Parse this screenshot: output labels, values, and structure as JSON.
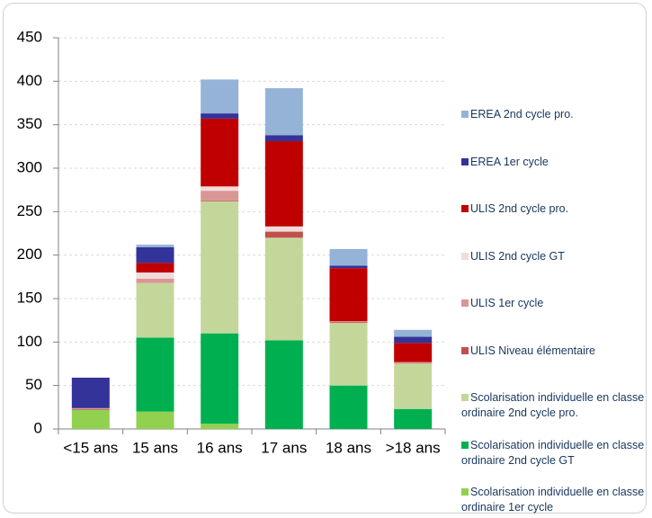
{
  "chart_data": {
    "type": "bar",
    "stacked": true,
    "categories": [
      "<15 ans",
      "15 ans",
      "16 ans",
      "17 ans",
      "18 ans",
      ">18 ans"
    ],
    "series": [
      {
        "name": "Scolarisation individuelle en classe ordinaire 1er cycle",
        "color": "#92d050",
        "values": [
          22,
          20,
          6,
          0,
          0,
          0
        ]
      },
      {
        "name": "Scolarisation individuelle en classe ordinaire 2nd cycle GT",
        "color": "#00b050",
        "values": [
          0,
          85,
          104,
          102,
          50,
          23
        ]
      },
      {
        "name": "Scolarisation individuelle en classe ordinaire 2nd cycle pro.",
        "color": "#c4d79b",
        "values": [
          0,
          63,
          152,
          118,
          72,
          52
        ]
      },
      {
        "name": "ULIS Niveau élémentaire",
        "color": "#c0504d",
        "values": [
          1,
          0,
          1,
          7,
          1,
          0
        ]
      },
      {
        "name": "ULIS 1er cycle",
        "color": "#da9694",
        "values": [
          1,
          5,
          11,
          0,
          1,
          2
        ]
      },
      {
        "name": "ULIS 2nd cycle GT",
        "color": "#f2dcdb",
        "values": [
          0,
          7,
          5,
          6,
          0,
          0
        ]
      },
      {
        "name": "ULIS 2nd cycle pro.",
        "color": "#c00000",
        "values": [
          0,
          11,
          78,
          98,
          61,
          22
        ]
      },
      {
        "name": "EREA 1er cycle",
        "color": "#333399",
        "values": [
          35,
          18,
          6,
          7,
          3,
          7
        ]
      },
      {
        "name": "EREA 2nd cycle pro.",
        "color": "#95b3d7",
        "values": [
          0,
          3,
          39,
          54,
          19,
          8
        ]
      }
    ],
    "ylim": [
      0,
      450
    ],
    "yticks": [
      0,
      50,
      100,
      150,
      200,
      250,
      300,
      350,
      400,
      450
    ],
    "grid": true
  }
}
